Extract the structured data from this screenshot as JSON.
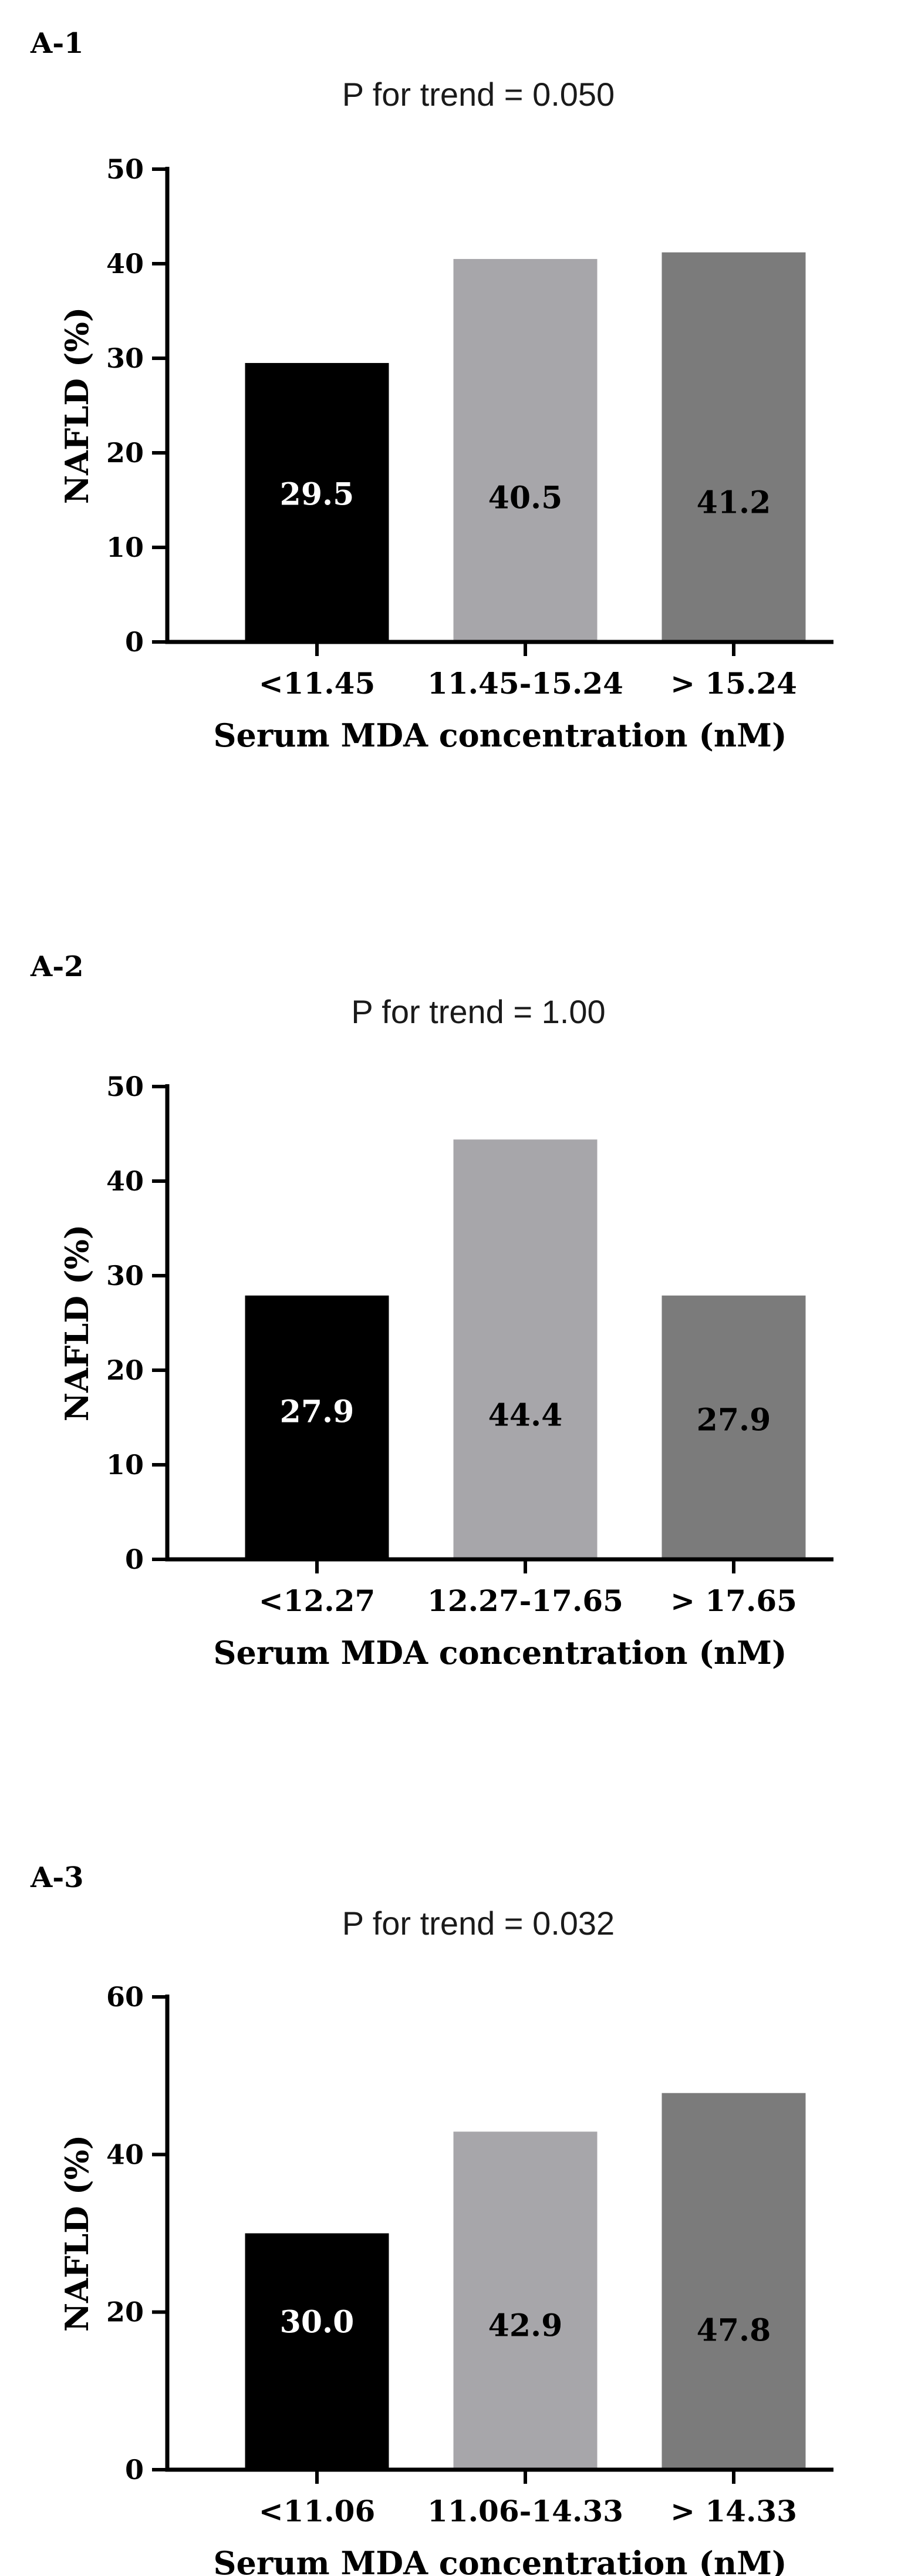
{
  "chart_data": [
    {
      "type": "bar",
      "panel": "A-1",
      "title": "P for trend = 0.050",
      "categories": [
        "<11.45",
        "11.45-15.24",
        "> 15.24"
      ],
      "values": [
        29.5,
        40.5,
        41.2
      ],
      "data_labels": [
        "29.5",
        "40.5",
        "41.2"
      ],
      "colors": [
        "#000000",
        "#a7a6aa",
        "#7b7b7b"
      ],
      "label_colors": [
        "#ffffff",
        "#000000",
        "#000000"
      ],
      "xlabel": "Serum MDA concentration (nM)",
      "ylabel": "NAFLD (%)",
      "ylim": [
        0,
        50
      ],
      "yticks": [
        0,
        10,
        20,
        30,
        40,
        50
      ],
      "grid": false
    },
    {
      "type": "bar",
      "panel": "A-2",
      "title": "P for trend = 1.00",
      "categories": [
        "<12.27",
        "12.27-17.65",
        "> 17.65"
      ],
      "values": [
        27.9,
        44.4,
        27.9
      ],
      "data_labels": [
        "27.9",
        "44.4",
        "27.9"
      ],
      "colors": [
        "#000000",
        "#a7a6aa",
        "#7b7b7b"
      ],
      "label_colors": [
        "#ffffff",
        "#000000",
        "#000000"
      ],
      "xlabel": "Serum MDA concentration (nM)",
      "ylabel": "NAFLD (%)",
      "ylim": [
        0,
        50
      ],
      "yticks": [
        0,
        10,
        20,
        30,
        40,
        50
      ],
      "grid": false
    },
    {
      "type": "bar",
      "panel": "A-3",
      "title": "P for trend = 0.032",
      "categories": [
        "<11.06",
        "11.06-14.33",
        "> 14.33"
      ],
      "values": [
        30.0,
        42.9,
        47.8
      ],
      "data_labels": [
        "30.0",
        "42.9",
        "47.8"
      ],
      "colors": [
        "#000000",
        "#a7a6aa",
        "#7b7b7b"
      ],
      "label_colors": [
        "#ffffff",
        "#000000",
        "#000000"
      ],
      "xlabel": "Serum MDA concentration (nM)",
      "ylabel": "NAFLD (%)",
      "ylim": [
        0,
        60
      ],
      "yticks": [
        0,
        20,
        40,
        60
      ],
      "grid": false
    }
  ]
}
